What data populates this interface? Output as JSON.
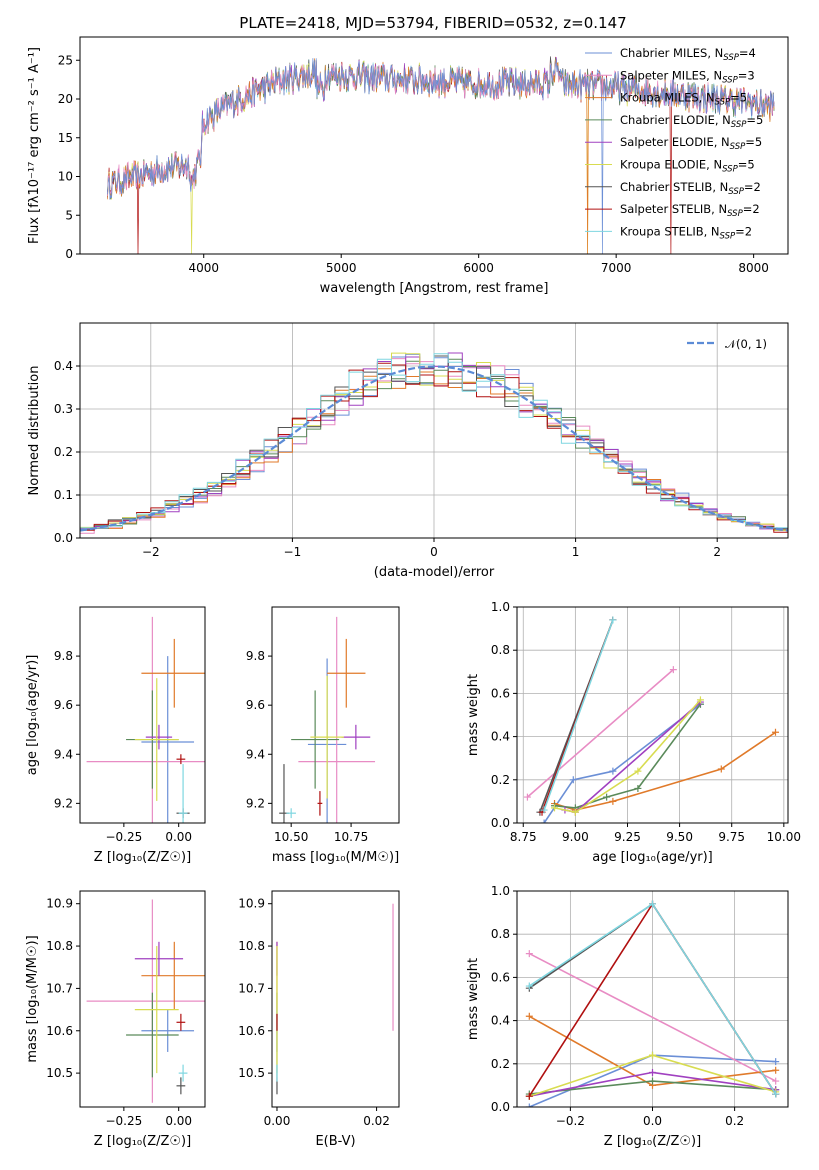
{
  "colors": {
    "Chabrier MILES": "#6b8fd6",
    "Salpeter MILES": "#e88cc4",
    "Kroupa MILES": "#e07a2a",
    "Chabrier ELODIE": "#5a8a5a",
    "Salpeter ELODIE": "#a040c0",
    "Kroupa ELODIE": "#d8dc50",
    "Chabrier STELIB": "#555555",
    "Salpeter STELIB": "#b01010",
    "Kroupa STELIB": "#7ed6e0"
  },
  "chart_data": [
    {
      "id": "spectrum",
      "type": "line",
      "title": "PLATE=2418, MJD=53794, FIBERID=0532, z=0.147",
      "xlabel": "wavelength [Angstrom, rest frame]",
      "ylabel": "Flux [f$_\\lambda$10$^{-17}$ erg cm$^{-2}$ s$^{-1}$ A$^{-1}$]",
      "xlim": [
        3100,
        8250
      ],
      "ylim": [
        0,
        28
      ],
      "xticks": [
        "4000",
        "5000",
        "6000",
        "7000",
        "8000"
      ],
      "yticks": [
        "0",
        "5",
        "10",
        "15",
        "20",
        "25"
      ],
      "continuum_x": [
        3300,
        3500,
        3700,
        3900,
        4000,
        4200,
        4500,
        4800,
        5000,
        5500,
        6000,
        6500,
        7000,
        7500,
        8000,
        8150
      ],
      "continuum_y": [
        9,
        10,
        11,
        11.5,
        17,
        19.5,
        22,
        23.5,
        23,
        22.5,
        22,
        22,
        21.5,
        20.5,
        19.5,
        19
      ],
      "legend": [
        {
          "name": "Chabrier MILES",
          "nssp": "4"
        },
        {
          "name": "Salpeter MILES",
          "nssp": "3"
        },
        {
          "name": "Kroupa MILES",
          "nssp": "5"
        },
        {
          "name": "Chabrier ELODIE",
          "nssp": "5"
        },
        {
          "name": "Salpeter ELODIE",
          "nssp": "5"
        },
        {
          "name": "Kroupa ELODIE",
          "nssp": "5"
        },
        {
          "name": "Chabrier STELIB",
          "nssp": "2"
        },
        {
          "name": "Salpeter STELIB",
          "nssp": "2"
        },
        {
          "name": "Kroupa STELIB",
          "nssp": "2"
        }
      ]
    },
    {
      "id": "residuals",
      "type": "line",
      "xlabel": "(data-model)/error",
      "ylabel": "Normed distribution",
      "xlim": [
        -2.5,
        2.5
      ],
      "ylim": [
        0,
        0.5
      ],
      "xticks": [
        "−2",
        "−1",
        "0",
        "1",
        "2"
      ],
      "yticks": [
        "0.0",
        "0.1",
        "0.2",
        "0.3",
        "0.4"
      ],
      "legend": [
        "𝒩(0, 1)"
      ],
      "grid": true
    },
    {
      "id": "age_vs_Z",
      "type": "scatter",
      "xlabel": "Z [log₁₀(Z/Z☉)]",
      "ylabel": "age  [log₁₀(age/yr)]",
      "xlim": [
        -0.45,
        0.12
      ],
      "ylim": [
        9.12,
        10.0
      ],
      "xticks": [
        "−0.25",
        "0.00"
      ],
      "yticks": [
        "9.2",
        "9.4",
        "9.6",
        "9.8"
      ],
      "points": [
        {
          "series": "Chabrier MILES",
          "x": -0.05,
          "y": 9.45,
          "xerr": 0.12,
          "yerr": 0.35
        },
        {
          "series": "Salpeter MILES",
          "x": -0.12,
          "y": 9.37,
          "xerr": 0.3,
          "yerr": 0.59
        },
        {
          "series": "Kroupa MILES",
          "x": -0.02,
          "y": 9.73,
          "xerr": 0.15,
          "yerr": 0.14
        },
        {
          "series": "Chabrier ELODIE",
          "x": -0.12,
          "y": 9.46,
          "xerr": 0.12,
          "yerr": 0.2
        },
        {
          "series": "Salpeter ELODIE",
          "x": -0.09,
          "y": 9.47,
          "xerr": 0.06,
          "yerr": 0.05
        },
        {
          "series": "Kroupa ELODIE",
          "x": -0.1,
          "y": 9.46,
          "xerr": 0.1,
          "yerr": 0.25
        },
        {
          "series": "Chabrier STELIB",
          "x": 0.02,
          "y": 9.16,
          "xerr": 0.03,
          "yerr": 0.02
        },
        {
          "series": "Salpeter STELIB",
          "x": 0.01,
          "y": 9.38,
          "xerr": 0.02,
          "yerr": 0.02
        },
        {
          "series": "Kroupa STELIB",
          "x": 0.02,
          "y": 9.16,
          "xerr": 0.02,
          "yerr": 0.2
        }
      ]
    },
    {
      "id": "age_vs_mass",
      "type": "scatter",
      "xlabel": "mass [log₁₀(M/M☉)]",
      "xlim": [
        10.42,
        10.95
      ],
      "ylim": [
        9.12,
        10.0
      ],
      "xticks": [
        "10.50",
        "10.75"
      ],
      "yticks": [
        "9.2",
        "9.4",
        "9.6",
        "9.8"
      ],
      "points": [
        {
          "series": "Chabrier MILES",
          "x": 10.65,
          "y": 9.44,
          "xerr": 0.08,
          "yerr": 0.35
        },
        {
          "series": "Salpeter MILES",
          "x": 10.69,
          "y": 9.37,
          "xerr": 0.16,
          "yerr": 0.59
        },
        {
          "series": "Kroupa MILES",
          "x": 10.73,
          "y": 9.73,
          "xerr": 0.08,
          "yerr": 0.14
        },
        {
          "series": "Chabrier ELODIE",
          "x": 10.6,
          "y": 9.46,
          "xerr": 0.1,
          "yerr": 0.2
        },
        {
          "series": "Salpeter ELODIE",
          "x": 10.77,
          "y": 9.47,
          "xerr": 0.06,
          "yerr": 0.05
        },
        {
          "series": "Kroupa ELODIE",
          "x": 10.65,
          "y": 9.47,
          "xerr": 0.07,
          "yerr": 0.25
        },
        {
          "series": "Chabrier STELIB",
          "x": 10.47,
          "y": 9.16,
          "xerr": 0.02,
          "yerr": 0.2
        },
        {
          "series": "Salpeter STELIB",
          "x": 10.62,
          "y": 9.2,
          "xerr": 0.01,
          "yerr": 0.05
        },
        {
          "series": "Kroupa STELIB",
          "x": 10.5,
          "y": 9.16,
          "xerr": 0.02,
          "yerr": 0.02
        }
      ]
    },
    {
      "id": "weight_vs_age",
      "type": "line",
      "xlabel": "age  [log₁₀(age/yr)]",
      "ylabel": "mass weight",
      "xlim": [
        8.72,
        10.02
      ],
      "ylim": [
        0,
        1.0
      ],
      "xticks": [
        "8.75",
        "9.00",
        "9.25",
        "9.50",
        "9.75",
        "10.00"
      ],
      "yticks": [
        "0.0",
        "0.2",
        "0.4",
        "0.6",
        "0.8",
        "1.0"
      ],
      "grid": true,
      "series": [
        {
          "name": "Chabrier MILES",
          "x": [
            8.85,
            8.99,
            9.18,
            9.6
          ],
          "y": [
            0.0,
            0.2,
            0.24,
            0.55
          ]
        },
        {
          "name": "Salpeter MILES",
          "x": [
            8.77,
            9.47
          ],
          "y": [
            0.12,
            0.71
          ]
        },
        {
          "name": "Kroupa MILES",
          "x": [
            8.9,
            9.0,
            9.18,
            9.7,
            9.96
          ],
          "y": [
            0.09,
            0.06,
            0.1,
            0.25,
            0.42
          ]
        },
        {
          "name": "Chabrier ELODIE",
          "x": [
            8.9,
            9.0,
            9.15,
            9.3,
            9.6
          ],
          "y": [
            0.08,
            0.07,
            0.12,
            0.16,
            0.55
          ]
        },
        {
          "name": "Salpeter ELODIE",
          "x": [
            8.95,
            9.0,
            9.6
          ],
          "y": [
            0.06,
            0.05,
            0.56
          ]
        },
        {
          "name": "Kroupa ELODIE",
          "x": [
            8.9,
            9.0,
            9.3,
            9.6
          ],
          "y": [
            0.07,
            0.05,
            0.24,
            0.57
          ]
        },
        {
          "name": "Chabrier STELIB",
          "x": [
            8.83,
            9.18
          ],
          "y": [
            0.05,
            0.94
          ]
        },
        {
          "name": "Salpeter STELIB",
          "x": [
            8.84,
            9.18
          ],
          "y": [
            0.05,
            0.94
          ]
        },
        {
          "name": "Kroupa STELIB",
          "x": [
            8.85,
            9.18
          ],
          "y": [
            0.06,
            0.94
          ]
        }
      ]
    },
    {
      "id": "mass_vs_Z",
      "type": "scatter",
      "xlabel": "Z [log₁₀(Z/Z☉)]",
      "ylabel": "mass [log₁₀(M/M☉)]",
      "xlim": [
        -0.45,
        0.12
      ],
      "ylim": [
        10.42,
        10.93
      ],
      "xticks": [
        "−0.25",
        "0.00"
      ],
      "yticks": [
        "10.5",
        "10.6",
        "10.7",
        "10.8",
        "10.9"
      ],
      "points": [
        {
          "series": "Chabrier MILES",
          "x": -0.05,
          "y": 10.6,
          "xerr": 0.12,
          "yerr": 0.05
        },
        {
          "series": "Salpeter MILES",
          "x": -0.12,
          "y": 10.67,
          "xerr": 0.3,
          "yerr": 0.24
        },
        {
          "series": "Kroupa MILES",
          "x": -0.02,
          "y": 10.73,
          "xerr": 0.15,
          "yerr": 0.08
        },
        {
          "series": "Chabrier ELODIE",
          "x": -0.12,
          "y": 10.59,
          "xerr": 0.12,
          "yerr": 0.1
        },
        {
          "series": "Salpeter ELODIE",
          "x": -0.09,
          "y": 10.77,
          "xerr": 0.11,
          "yerr": 0.04
        },
        {
          "series": "Kroupa ELODIE",
          "x": -0.1,
          "y": 10.65,
          "xerr": 0.1,
          "yerr": 0.15
        },
        {
          "series": "Chabrier STELIB",
          "x": 0.01,
          "y": 10.47,
          "xerr": 0.02,
          "yerr": 0.02
        },
        {
          "series": "Salpeter STELIB",
          "x": 0.01,
          "y": 10.62,
          "xerr": 0.02,
          "yerr": 0.02
        },
        {
          "series": "Kroupa STELIB",
          "x": 0.02,
          "y": 10.5,
          "xerr": 0.02,
          "yerr": 0.02
        }
      ]
    },
    {
      "id": "mass_vs_ebv",
      "type": "scatter",
      "xlabel": "E(B-V)",
      "xlim": [
        -0.001,
        0.0245
      ],
      "ylim": [
        10.42,
        10.93
      ],
      "xticks": [
        "0.00",
        "0.02"
      ],
      "yticks": [
        "10.5",
        "10.6",
        "10.7",
        "10.8",
        "10.9"
      ],
      "points": [
        {
          "series": "Chabrier MILES",
          "x": 0.0,
          "y": 10.6,
          "yerr": 0.05
        },
        {
          "series": "Salpeter MILES",
          "x": 0.0233,
          "y": 10.75,
          "yerr": 0.15
        },
        {
          "series": "Kroupa MILES",
          "x": 0.0,
          "y": 10.73,
          "yerr": 0.08
        },
        {
          "series": "Chabrier ELODIE",
          "x": 0.0,
          "y": 10.59,
          "yerr": 0.1
        },
        {
          "series": "Salpeter ELODIE",
          "x": 0.0,
          "y": 10.77,
          "yerr": 0.04
        },
        {
          "series": "Kroupa ELODIE",
          "x": 0.0,
          "y": 10.65,
          "yerr": 0.15
        },
        {
          "series": "Chabrier STELIB",
          "x": 0.0,
          "y": 10.47,
          "yerr": 0.02
        },
        {
          "series": "Salpeter STELIB",
          "x": 0.0,
          "y": 10.62,
          "yerr": 0.02
        },
        {
          "series": "Kroupa STELIB",
          "x": 0.0,
          "y": 10.5,
          "yerr": 0.02
        }
      ]
    },
    {
      "id": "weight_vs_Z",
      "type": "line",
      "xlabel": "Z [log₁₀(Z/Z☉)]",
      "ylabel": "mass weight",
      "xlim": [
        -0.33,
        0.33
      ],
      "ylim": [
        0,
        1.0
      ],
      "xticks": [
        "−0.2",
        "0.0",
        "0.2"
      ],
      "yticks": [
        "0.0",
        "0.2",
        "0.4",
        "0.6",
        "0.8",
        "1.0"
      ],
      "grid": true,
      "series": [
        {
          "name": "Chabrier MILES",
          "x": [
            -0.3,
            0.0,
            0.3
          ],
          "y": [
            0.0,
            0.24,
            0.21
          ]
        },
        {
          "name": "Salpeter MILES",
          "x": [
            -0.3,
            0.3
          ],
          "y": [
            0.71,
            0.12
          ]
        },
        {
          "name": "Kroupa MILES",
          "x": [
            -0.3,
            0.0,
            0.3
          ],
          "y": [
            0.42,
            0.1,
            0.17
          ]
        },
        {
          "name": "Chabrier ELODIE",
          "x": [
            -0.3,
            0.0,
            0.3
          ],
          "y": [
            0.06,
            0.12,
            0.08
          ]
        },
        {
          "name": "Salpeter ELODIE",
          "x": [
            -0.3,
            0.0,
            0.3
          ],
          "y": [
            0.05,
            0.16,
            0.08
          ]
        },
        {
          "name": "Kroupa ELODIE",
          "x": [
            -0.3,
            0.0,
            0.3
          ],
          "y": [
            0.05,
            0.24,
            0.07
          ]
        },
        {
          "name": "Chabrier STELIB",
          "x": [
            -0.3,
            0.0,
            0.3
          ],
          "y": [
            0.55,
            0.94,
            0.06
          ]
        },
        {
          "name": "Salpeter STELIB",
          "x": [
            -0.3,
            0.0,
            0.3
          ],
          "y": [
            0.05,
            0.94,
            0.06
          ]
        },
        {
          "name": "Kroupa STELIB",
          "x": [
            -0.3,
            0.0,
            0.3
          ],
          "y": [
            0.56,
            0.94,
            0.06
          ]
        }
      ]
    }
  ]
}
